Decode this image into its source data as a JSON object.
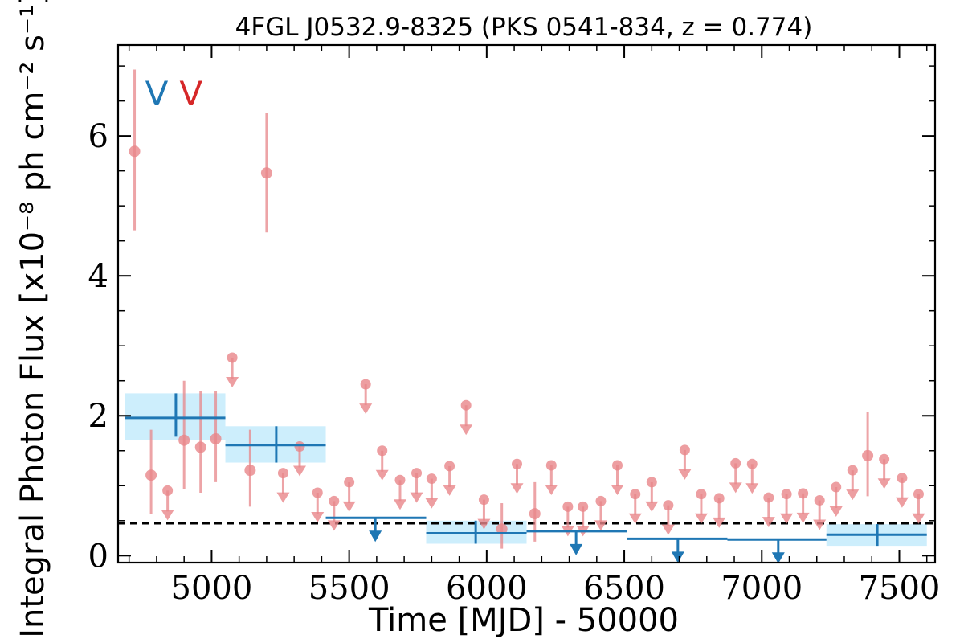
{
  "chart_data": {
    "type": "scatter",
    "title": "4FGL J0532.9-8325 (PKS 0541-834, z = 0.774)",
    "xlabel": "Time [MJD] - 50000",
    "ylabel": "Integral Photon Flux [x10⁻⁸ ph cm⁻² s⁻¹]",
    "xlim": [
      4660,
      7630
    ],
    "ylim": [
      -0.1,
      7.3
    ],
    "xticks": [
      5000,
      5500,
      6000,
      6500,
      7000,
      7500
    ],
    "yticks": [
      0,
      2,
      4,
      6
    ],
    "grid": false,
    "colors": {
      "short_bins": "#e8868a",
      "long_bins": "#1f77b4",
      "band": "#cdeefc",
      "marker_blue": "#1f77b4",
      "marker_red": "#d62728"
    },
    "reference_line": {
      "y": 0.46,
      "style": "dashed"
    },
    "markers": [
      {
        "label": "V",
        "x": 4800,
        "y": 6.6,
        "color": "#1f77b4"
      },
      {
        "label": "V",
        "x": 4925,
        "y": 6.6,
        "color": "#d62728"
      }
    ],
    "short_bins": {
      "detections": [
        {
          "x": 4720,
          "y": 5.78,
          "lo": 4.65,
          "hi": 6.95
        },
        {
          "x": 4780,
          "y": 1.15,
          "lo": 0.6,
          "hi": 1.8
        },
        {
          "x": 4900,
          "y": 1.65,
          "lo": 0.95,
          "hi": 2.5
        },
        {
          "x": 4960,
          "y": 1.55,
          "lo": 0.9,
          "hi": 2.35
        },
        {
          "x": 5015,
          "y": 1.67,
          "lo": 1.05,
          "hi": 2.35
        },
        {
          "x": 5140,
          "y": 1.22,
          "lo": 0.7,
          "hi": 1.8
        },
        {
          "x": 5200,
          "y": 5.47,
          "lo": 4.62,
          "hi": 6.33
        },
        {
          "x": 6055,
          "y": 0.38,
          "lo": 0.1,
          "hi": 0.75
        },
        {
          "x": 6175,
          "y": 0.6,
          "lo": 0.2,
          "hi": 1.05
        },
        {
          "x": 7385,
          "y": 1.43,
          "lo": 0.85,
          "hi": 2.06
        }
      ],
      "upper_limits": [
        {
          "x": 4840,
          "y": 0.93
        },
        {
          "x": 5075,
          "y": 2.83
        },
        {
          "x": 5260,
          "y": 1.18
        },
        {
          "x": 5320,
          "y": 1.56
        },
        {
          "x": 5385,
          "y": 0.9
        },
        {
          "x": 5445,
          "y": 0.78
        },
        {
          "x": 5500,
          "y": 1.05
        },
        {
          "x": 5560,
          "y": 2.45
        },
        {
          "x": 5620,
          "y": 1.5
        },
        {
          "x": 5685,
          "y": 1.08
        },
        {
          "x": 5745,
          "y": 1.18
        },
        {
          "x": 5800,
          "y": 1.1
        },
        {
          "x": 5865,
          "y": 1.28
        },
        {
          "x": 5925,
          "y": 2.15
        },
        {
          "x": 5990,
          "y": 0.8
        },
        {
          "x": 6110,
          "y": 1.31
        },
        {
          "x": 6235,
          "y": 1.29
        },
        {
          "x": 6295,
          "y": 0.7
        },
        {
          "x": 6350,
          "y": 0.7
        },
        {
          "x": 6415,
          "y": 0.78
        },
        {
          "x": 6475,
          "y": 1.29
        },
        {
          "x": 6540,
          "y": 0.88
        },
        {
          "x": 6600,
          "y": 1.05
        },
        {
          "x": 6660,
          "y": 0.72
        },
        {
          "x": 6720,
          "y": 1.51
        },
        {
          "x": 6780,
          "y": 0.88
        },
        {
          "x": 6845,
          "y": 0.82
        },
        {
          "x": 6905,
          "y": 1.32
        },
        {
          "x": 6965,
          "y": 1.31
        },
        {
          "x": 7025,
          "y": 0.83
        },
        {
          "x": 7090,
          "y": 0.88
        },
        {
          "x": 7150,
          "y": 0.89
        },
        {
          "x": 7210,
          "y": 0.79
        },
        {
          "x": 7270,
          "y": 0.98
        },
        {
          "x": 7330,
          "y": 1.22
        },
        {
          "x": 7445,
          "y": 1.38
        },
        {
          "x": 7510,
          "y": 1.11
        },
        {
          "x": 7570,
          "y": 0.88
        }
      ]
    },
    "long_bins": {
      "detections": [
        {
          "x0": 4685,
          "x1": 5050,
          "y": 1.97,
          "lo": 1.65,
          "hi": 2.32,
          "xc": 4870,
          "err_lo": 1.7,
          "err_hi": 2.32
        },
        {
          "x0": 5050,
          "x1": 5415,
          "y": 1.58,
          "lo": 1.33,
          "hi": 1.85,
          "xc": 5235,
          "err_lo": 1.33,
          "err_hi": 1.85
        },
        {
          "x0": 5780,
          "x1": 6145,
          "y": 0.32,
          "lo": 0.17,
          "hi": 0.5,
          "xc": 5960,
          "err_lo": 0.17,
          "err_hi": 0.5
        },
        {
          "x0": 7235,
          "x1": 7600,
          "y": 0.3,
          "lo": 0.14,
          "hi": 0.45,
          "xc": 7420,
          "err_lo": 0.14,
          "err_hi": 0.45
        }
      ],
      "upper_limits": [
        {
          "x0": 5415,
          "x1": 5780,
          "y": 0.54,
          "xc": 5595
        },
        {
          "x0": 6145,
          "x1": 6510,
          "y": 0.35,
          "xc": 6325
        },
        {
          "x0": 6510,
          "x1": 6875,
          "y": 0.24,
          "xc": 6695
        },
        {
          "x0": 6875,
          "x1": 7235,
          "y": 0.23,
          "xc": 7060
        }
      ]
    }
  }
}
